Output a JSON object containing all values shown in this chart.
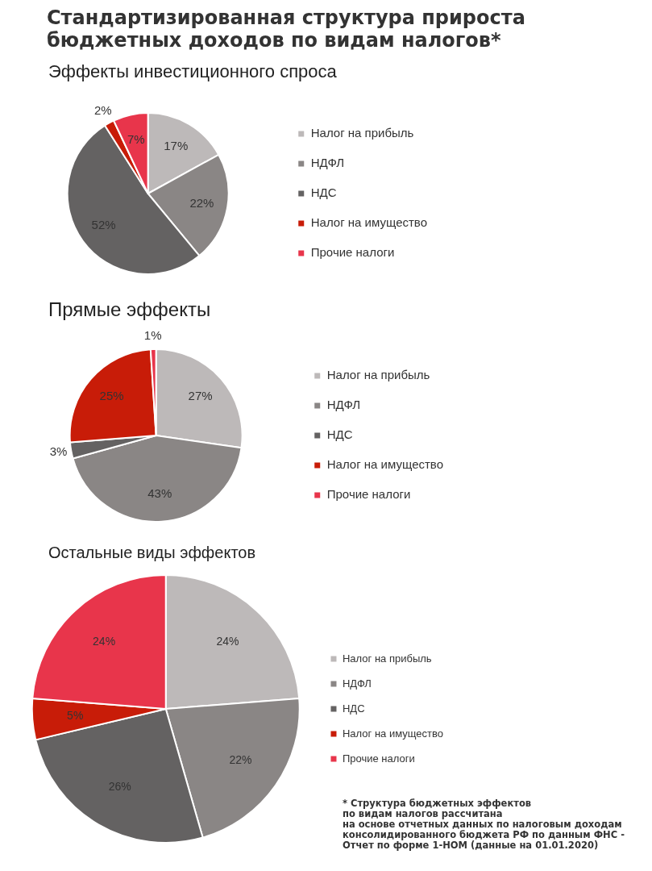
{
  "chart_data": [
    {
      "type": "pie",
      "title": "Стандартизированная структура прироста бюджетных доходов по видам налогов*",
      "subtitle": "Эффекты инвестиционного спроса",
      "categories": [
        "Налог на прибыль",
        "НДФЛ",
        "НДС",
        "Налог на имущество",
        "Прочие налоги"
      ],
      "values": [
        17,
        22,
        52,
        2,
        7
      ],
      "value_labels": [
        "17%",
        "22%",
        "52%",
        "2%",
        "7%"
      ],
      "colors": [
        "#bdb9b9",
        "#8a8685",
        "#646262",
        "#c81c08",
        "#e8354b"
      ],
      "legend": "right"
    },
    {
      "type": "pie",
      "title": "Прямые эффекты",
      "categories": [
        "Налог на прибыль",
        "НДФЛ",
        "НДС",
        "Налог на имущество",
        "Прочие налоги"
      ],
      "values": [
        27,
        43,
        3,
        25,
        1
      ],
      "value_labels": [
        "27%",
        "43%",
        "3%",
        "25%",
        "1%"
      ],
      "colors": [
        "#bdb9b9",
        "#8a8685",
        "#646262",
        "#c81c08",
        "#e8354b"
      ],
      "legend": "right"
    },
    {
      "type": "pie",
      "title": "Остальные виды эффектов",
      "categories": [
        "Налог на прибыль",
        "НДФЛ",
        "НДС",
        "Налог на имущество",
        "Прочие налоги"
      ],
      "values": [
        24,
        22,
        26,
        5,
        24
      ],
      "value_labels": [
        "24%",
        "22%",
        "26%",
        "5%",
        "24%"
      ],
      "colors": [
        "#bdb9b9",
        "#8a8685",
        "#646262",
        "#c81c08",
        "#e8354b"
      ],
      "legend": "right",
      "annotations": [
        "* Структура бюджетных эффектов\nпо видам налогов рассчитана\nна основе отчетных данных по налоговым доходам\nконсолидированного бюджета РФ по данным ФНС -\nОтчет по форме 1-НОМ (данные на 01.01.2020)"
      ]
    }
  ]
}
